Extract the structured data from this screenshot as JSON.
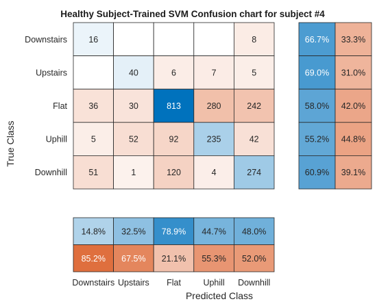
{
  "chart_data": {
    "type": "heatmap",
    "title": "Healthy Subject-Trained SVM Confusion chart for subject #4",
    "xlabel": "Predicted Class",
    "ylabel": "True Class",
    "classes": [
      "Downstairs",
      "Upstairs",
      "Flat",
      "Uphill",
      "Downhill"
    ],
    "matrix": [
      [
        16,
        null,
        null,
        null,
        8
      ],
      [
        null,
        40,
        6,
        7,
        5
      ],
      [
        36,
        30,
        813,
        280,
        242
      ],
      [
        5,
        52,
        92,
        235,
        42
      ],
      [
        51,
        1,
        120,
        4,
        274
      ]
    ],
    "row_summary": [
      [
        "66.7%",
        "33.3%"
      ],
      [
        "69.0%",
        "31.0%"
      ],
      [
        "58.0%",
        "42.0%"
      ],
      [
        "55.2%",
        "44.8%"
      ],
      [
        "60.9%",
        "39.1%"
      ]
    ],
    "column_summary": [
      [
        "14.8%",
        "32.5%",
        "78.9%",
        "44.7%",
        "48.0%"
      ],
      [
        "85.2%",
        "67.5%",
        "21.1%",
        "55.3%",
        "52.0%"
      ]
    ],
    "colors": {
      "correct": "#0072bd",
      "incorrect": "#d95319",
      "grid": "#262626"
    }
  }
}
